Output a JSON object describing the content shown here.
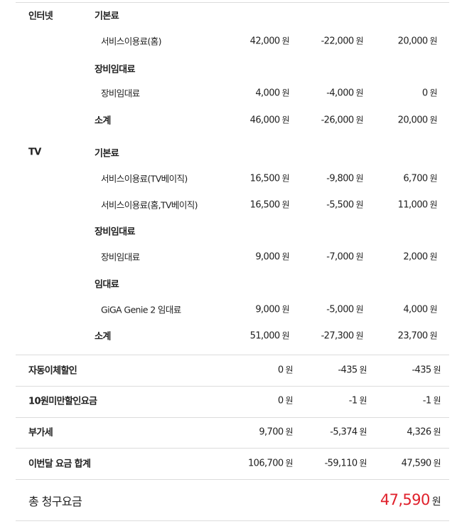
{
  "currency": "원",
  "internet": {
    "label": "인터넷",
    "groups": [
      {
        "title": "기본료",
        "items": [
          {
            "name": "서비스이용료(홈)",
            "amounts": [
              "42,000",
              "-22,000",
              "20,000"
            ]
          }
        ]
      },
      {
        "title": "장비임대료",
        "items": [
          {
            "name": "장비임대료",
            "amounts": [
              "4,000",
              "-4,000",
              "0"
            ]
          }
        ]
      }
    ],
    "subtotal": {
      "label": "소계",
      "amounts": [
        "46,000",
        "-26,000",
        "20,000"
      ]
    }
  },
  "tv": {
    "label": "TV",
    "groups": [
      {
        "title": "기본료",
        "items": [
          {
            "name": "서비스이용료(TV베이직)",
            "amounts": [
              "16,500",
              "-9,800",
              "6,700"
            ]
          },
          {
            "name": "서비스이용료(홈,TV베이직)",
            "amounts": [
              "16,500",
              "-5,500",
              "11,000"
            ]
          }
        ]
      },
      {
        "title": "장비임대료",
        "items": [
          {
            "name": "장비임대료",
            "amounts": [
              "9,000",
              "-7,000",
              "2,000"
            ]
          }
        ]
      },
      {
        "title": "임대료",
        "items": [
          {
            "name": "GiGA Genie 2 임대료",
            "amounts": [
              "9,000",
              "-5,000",
              "4,000"
            ]
          }
        ]
      }
    ],
    "subtotal": {
      "label": "소계",
      "amounts": [
        "51,000",
        "-27,300",
        "23,700"
      ]
    }
  },
  "summary": [
    {
      "label": "자동이체할인",
      "amounts": [
        "0",
        "-435",
        "-435"
      ]
    },
    {
      "label": "10원미만할인요금",
      "amounts": [
        "0",
        "-1",
        "-1"
      ]
    },
    {
      "label": "부가세",
      "amounts": [
        "9,700",
        "-5,374",
        "4,326"
      ]
    },
    {
      "label": "이번달 요금 합계",
      "amounts": [
        "106,700",
        "-59,110",
        "47,590"
      ]
    }
  ],
  "total": {
    "label": "총 청구요금",
    "amount": "47,590"
  },
  "colors": {
    "accent": "#e0202b",
    "divider": "#dcdcdc"
  }
}
